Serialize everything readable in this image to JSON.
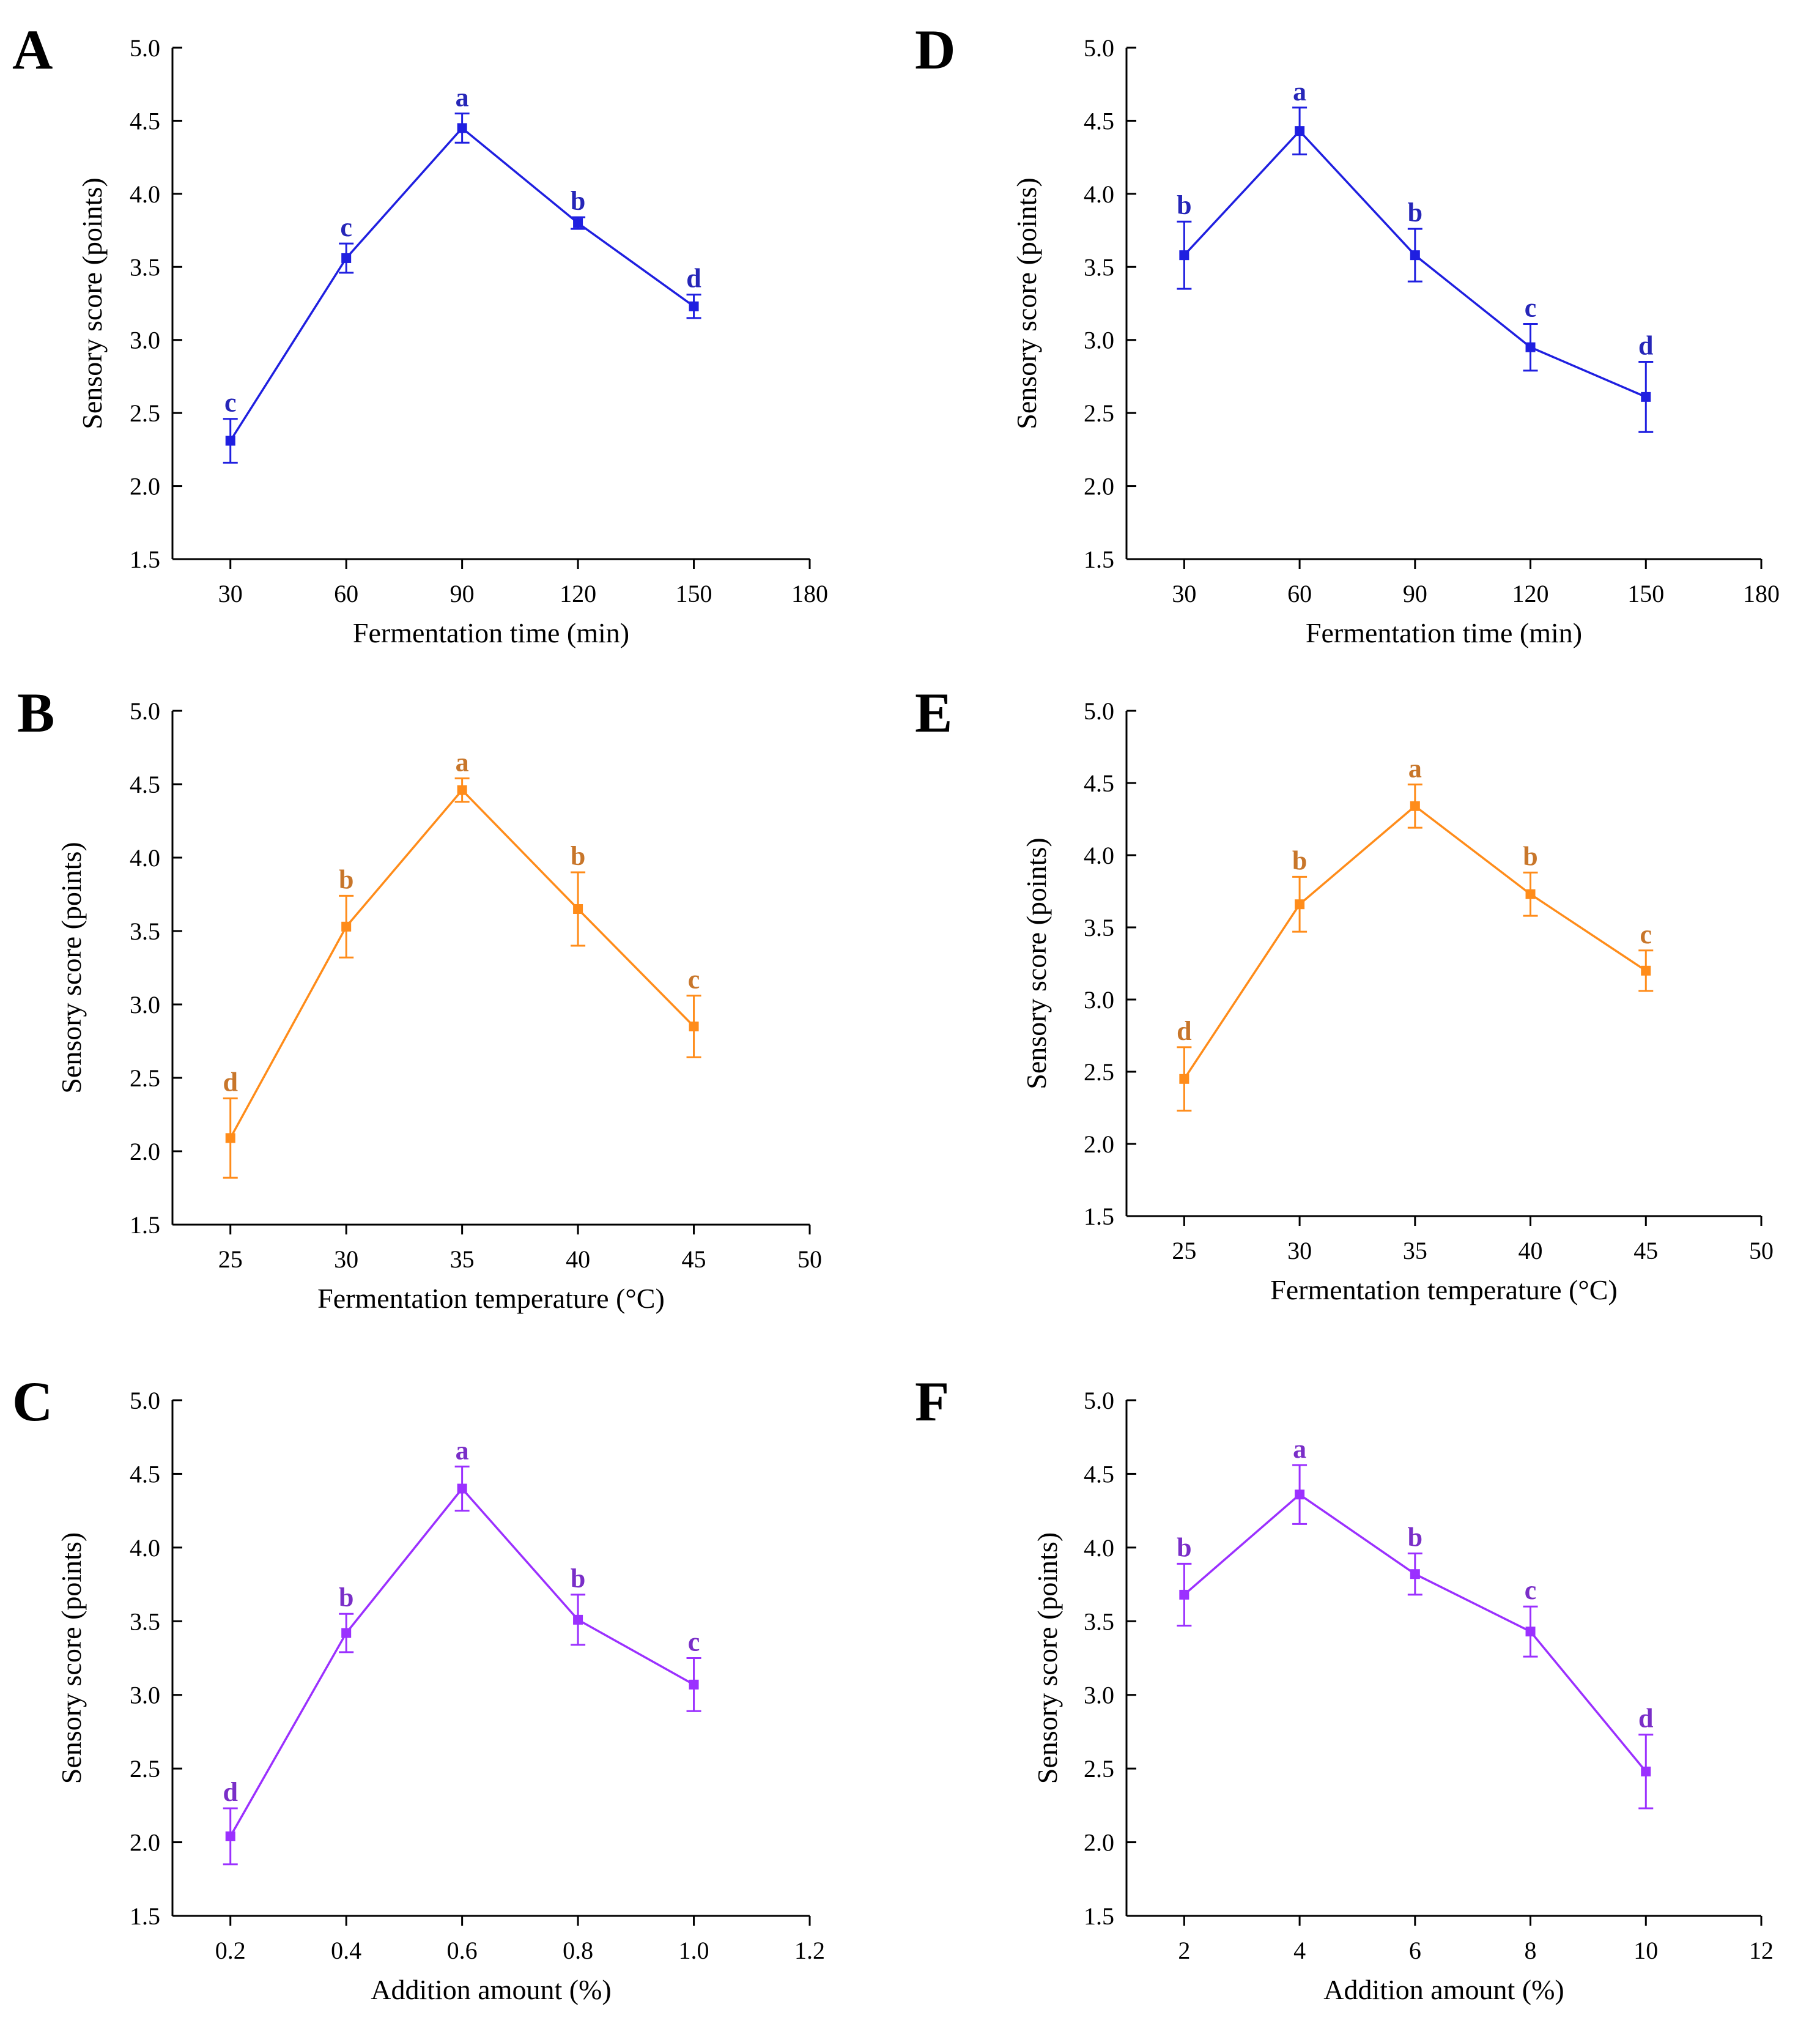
{
  "figure": {
    "chart_data": [
      {
        "panel": "A",
        "type": "line",
        "x": [
          30,
          60,
          90,
          120,
          150
        ],
        "values": [
          2.31,
          3.56,
          4.45,
          3.8,
          3.23
        ],
        "errors": [
          0.15,
          0.1,
          0.1,
          0.04,
          0.08
        ],
        "letters": [
          "c",
          "c",
          "a",
          "b",
          "d"
        ],
        "xlabel": "Fermentation time (min)",
        "ylabel": "Sensory score (points)",
        "xlim": [
          15,
          180
        ],
        "xticks": [
          30,
          60,
          90,
          120,
          150,
          180
        ],
        "xtick_labels": [
          "30",
          "60",
          "90",
          "120",
          "150",
          "180"
        ],
        "ylim": [
          1.5,
          5.0
        ],
        "yticks": [
          1.5,
          2.0,
          2.5,
          3.0,
          3.5,
          4.0,
          4.5,
          5.0
        ],
        "ytick_labels": [
          "1.5",
          "2.0",
          "2.5",
          "3.0",
          "3.5",
          "4.0",
          "4.5",
          "5.0"
        ],
        "color": "#1f1fe0",
        "label_color": "#2626b8",
        "grid": false
      },
      {
        "panel": "B",
        "type": "line",
        "x": [
          25,
          30,
          35,
          40,
          45
        ],
        "values": [
          2.09,
          3.53,
          4.46,
          3.65,
          2.85
        ],
        "errors": [
          0.27,
          0.21,
          0.08,
          0.25,
          0.21
        ],
        "letters": [
          "d",
          "b",
          "a",
          "b",
          "c"
        ],
        "xlabel": "Fermentation temperature (°C)",
        "ylabel": "Sensory score (points)",
        "xlim": [
          22.5,
          50
        ],
        "xticks": [
          25,
          30,
          35,
          40,
          45,
          50
        ],
        "xtick_labels": [
          "25",
          "30",
          "35",
          "40",
          "45",
          "50"
        ],
        "ylim": [
          1.5,
          5.0
        ],
        "yticks": [
          1.5,
          2.0,
          2.5,
          3.0,
          3.5,
          4.0,
          4.5,
          5.0
        ],
        "ytick_labels": [
          "1.5",
          "2.0",
          "2.5",
          "3.0",
          "3.5",
          "4.0",
          "4.5",
          "5.0"
        ],
        "color": "#ff8c1a",
        "label_color": "#c8762a",
        "grid": false
      },
      {
        "panel": "C",
        "type": "line",
        "x": [
          0.2,
          0.4,
          0.6,
          0.8,
          1.0
        ],
        "values": [
          2.04,
          3.42,
          4.4,
          3.51,
          3.07
        ],
        "errors": [
          0.19,
          0.13,
          0.15,
          0.17,
          0.18
        ],
        "letters": [
          "d",
          "b",
          "a",
          "b",
          "c"
        ],
        "xlabel": "Addition amount (%)",
        "ylabel": "Sensory score (points)",
        "xlim": [
          0.1,
          1.2
        ],
        "xticks": [
          0.2,
          0.4,
          0.6,
          0.8,
          1.0,
          1.2
        ],
        "xtick_labels": [
          "0.2",
          "0.4",
          "0.6",
          "0.8",
          "1.0",
          "1.2"
        ],
        "ylim": [
          1.5,
          5.0
        ],
        "yticks": [
          1.5,
          2.0,
          2.5,
          3.0,
          3.5,
          4.0,
          4.5,
          5.0
        ],
        "ytick_labels": [
          "1.5",
          "2.0",
          "2.5",
          "3.0",
          "3.5",
          "4.0",
          "4.5",
          "5.0"
        ],
        "color": "#9b30ff",
        "label_color": "#7a2ec8",
        "grid": false
      },
      {
        "panel": "D",
        "type": "line",
        "x": [
          30,
          60,
          90,
          120,
          150
        ],
        "values": [
          3.58,
          4.43,
          3.58,
          2.95,
          2.61
        ],
        "errors": [
          0.23,
          0.16,
          0.18,
          0.16,
          0.24
        ],
        "letters": [
          "b",
          "a",
          "b",
          "c",
          "d"
        ],
        "xlabel": "Fermentation time (min)",
        "ylabel": "Sensory score (points)",
        "xlim": [
          15,
          180
        ],
        "xticks": [
          30,
          60,
          90,
          120,
          150,
          180
        ],
        "xtick_labels": [
          "30",
          "60",
          "90",
          "120",
          "150",
          "180"
        ],
        "ylim": [
          1.5,
          5.0
        ],
        "yticks": [
          1.5,
          2.0,
          2.5,
          3.0,
          3.5,
          4.0,
          4.5,
          5.0
        ],
        "ytick_labels": [
          "1.5",
          "2.0",
          "2.5",
          "3.0",
          "3.5",
          "4.0",
          "4.5",
          "5.0"
        ],
        "color": "#1f1fe0",
        "label_color": "#2626b8",
        "grid": false
      },
      {
        "panel": "E",
        "type": "line",
        "x": [
          25,
          30,
          35,
          40,
          45
        ],
        "values": [
          2.45,
          3.66,
          4.34,
          3.73,
          3.2
        ],
        "errors": [
          0.22,
          0.19,
          0.15,
          0.15,
          0.14
        ],
        "letters": [
          "d",
          "b",
          "a",
          "b",
          "c"
        ],
        "xlabel": "Fermentation temperature (°C)",
        "ylabel": "Sensory score (points)",
        "xlim": [
          22.5,
          50
        ],
        "xticks": [
          25,
          30,
          35,
          40,
          45,
          50
        ],
        "xtick_labels": [
          "25",
          "30",
          "35",
          "40",
          "45",
          "50"
        ],
        "ylim": [
          1.5,
          5.0
        ],
        "yticks": [
          1.5,
          2.0,
          2.5,
          3.0,
          3.5,
          4.0,
          4.5,
          5.0
        ],
        "ytick_labels": [
          "1.5",
          "2.0",
          "2.5",
          "3.0",
          "3.5",
          "4.0",
          "4.5",
          "5.0"
        ],
        "color": "#ff8c1a",
        "label_color": "#c8762a",
        "grid": false
      },
      {
        "panel": "F",
        "type": "line",
        "x": [
          2,
          4,
          6,
          8,
          10
        ],
        "values": [
          3.68,
          4.36,
          3.82,
          3.43,
          2.48
        ],
        "errors": [
          0.21,
          0.2,
          0.14,
          0.17,
          0.25
        ],
        "letters": [
          "b",
          "a",
          "b",
          "c",
          "d"
        ],
        "xlabel": "Addition amount (%)",
        "ylabel": "Sensory score (points)",
        "xlim": [
          1,
          12
        ],
        "xticks": [
          2,
          4,
          6,
          8,
          10,
          12
        ],
        "xtick_labels": [
          "2",
          "4",
          "6",
          "8",
          "10",
          "12"
        ],
        "ylim": [
          1.5,
          5.0
        ],
        "yticks": [
          1.5,
          2.0,
          2.5,
          3.0,
          3.5,
          4.0,
          4.5,
          5.0
        ],
        "ytick_labels": [
          "1.5",
          "2.0",
          "2.5",
          "3.0",
          "3.5",
          "4.0",
          "4.5",
          "5.0"
        ],
        "color": "#9b30ff",
        "label_color": "#7a2ec8",
        "grid": false
      }
    ]
  }
}
